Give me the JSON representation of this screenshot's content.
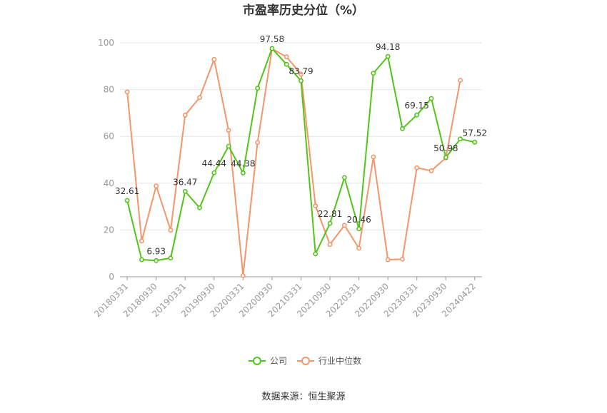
{
  "chart_data": {
    "type": "line",
    "title": "市盈率历史分位（%）",
    "categories": [
      "20180331",
      "20180630",
      "20180930",
      "20181231",
      "20190331",
      "20190630",
      "20190930",
      "20191231",
      "20200331",
      "20200630",
      "20200930",
      "20201231",
      "20210331",
      "20210630",
      "20210930",
      "20211231",
      "20220331",
      "20220630",
      "20220930",
      "20221231",
      "20230331",
      "20230630",
      "20230930",
      "20231231",
      "20240422"
    ],
    "x_tick_labels": [
      "20180331",
      "20180930",
      "20190331",
      "20190930",
      "20200331",
      "20200930",
      "20210331",
      "20210930",
      "20220331",
      "20220930",
      "20230331",
      "20230930",
      "20240422"
    ],
    "y_ticks": [
      0,
      20,
      40,
      60,
      80,
      100
    ],
    "ylim": [
      0,
      100
    ],
    "grid": true,
    "legend_position": "bottom",
    "series": [
      {
        "name": "公司",
        "color": "#52c41a",
        "values": [
          32.61,
          7.3,
          6.93,
          8.0,
          36.47,
          29.5,
          44.44,
          55.8,
          44.38,
          80.6,
          97.58,
          90.8,
          83.79,
          9.8,
          22.81,
          42.4,
          20.46,
          87.0,
          94.18,
          63.3,
          69.15,
          76.2,
          50.98,
          58.9,
          57.52
        ],
        "labels": {
          "0": "32.61",
          "2": "6.93",
          "4": "36.47",
          "6": "44.44",
          "8": "44.38",
          "10": "97.58",
          "12": "83.79",
          "14": "22.81",
          "16": "20.46",
          "18": "94.18",
          "20": "69.15",
          "22": "50.98",
          "24": "57.52"
        }
      },
      {
        "name": "行业中位数",
        "color": "#f4956a",
        "values": [
          79.0,
          15.3,
          38.8,
          19.9,
          69.1,
          76.6,
          92.9,
          62.6,
          0.5,
          57.4,
          97.4,
          94.0,
          86.6,
          30.3,
          13.8,
          22.0,
          12.2,
          51.2,
          7.3,
          7.5,
          46.6,
          45.3,
          50.8,
          84.0,
          null
        ]
      }
    ]
  },
  "source_text": "数据来源：恒生聚源"
}
